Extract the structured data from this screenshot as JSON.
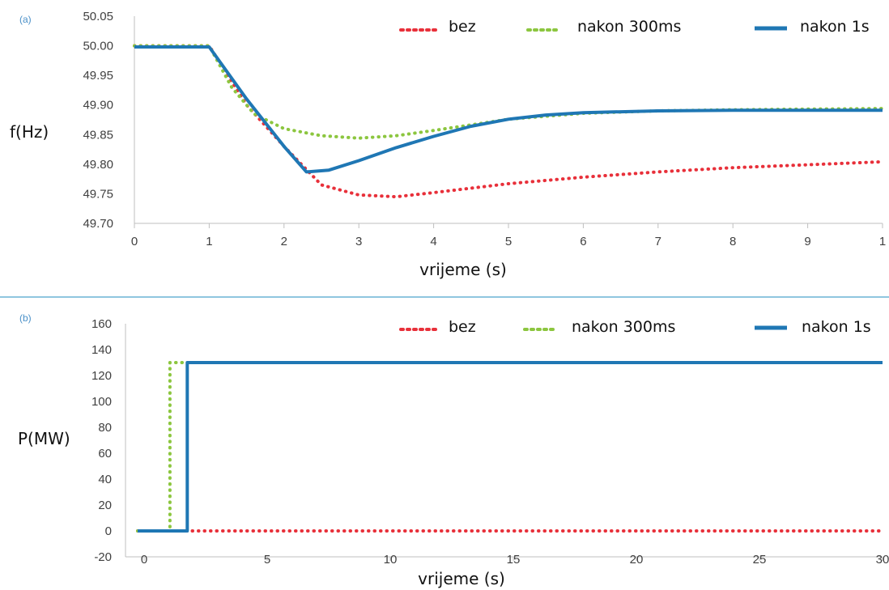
{
  "chart_data": [
    {
      "panel": "(a)",
      "type": "line",
      "xlabel": "vrijeme (s)",
      "ylabel": "f(Hz)",
      "xlim": [
        0,
        10
      ],
      "ylim": [
        49.7,
        50.05
      ],
      "x_ticks": [
        "0",
        "1",
        "2",
        "3",
        "4",
        "5",
        "6",
        "7",
        "8",
        "9",
        "1"
      ],
      "y_ticks": [
        "50.05",
        "50.00",
        "49.95",
        "49.90",
        "49.85",
        "49.80",
        "49.75",
        "49.70"
      ],
      "legend_position": "top",
      "series": [
        {
          "name": "bez",
          "color": "#e8303a",
          "style": "dotted",
          "points": [
            [
              0,
              50.0
            ],
            [
              1,
              50.0
            ],
            [
              1.5,
              49.9
            ],
            [
              2.0,
              49.83
            ],
            [
              2.5,
              49.765
            ],
            [
              3.0,
              49.748
            ],
            [
              3.5,
              49.745
            ],
            [
              4.0,
              49.752
            ],
            [
              5.0,
              49.767
            ],
            [
              6.0,
              49.778
            ],
            [
              7.0,
              49.787
            ],
            [
              8.0,
              49.794
            ],
            [
              9.0,
              49.799
            ],
            [
              10.0,
              49.804
            ]
          ]
        },
        {
          "name": "nakon 300ms",
          "color": "#8cc63f",
          "style": "dotted",
          "points": [
            [
              0,
              50.0
            ],
            [
              1,
              50.0
            ],
            [
              1.3,
              49.93
            ],
            [
              1.6,
              49.885
            ],
            [
              2.0,
              49.86
            ],
            [
              2.5,
              49.848
            ],
            [
              3.0,
              49.844
            ],
            [
              3.5,
              49.848
            ],
            [
              4.0,
              49.857
            ],
            [
              5.0,
              49.876
            ],
            [
              6.0,
              49.886
            ],
            [
              7.0,
              49.89
            ],
            [
              8.0,
              49.892
            ],
            [
              9.0,
              49.893
            ],
            [
              10.0,
              49.894
            ]
          ]
        },
        {
          "name": "nakon 1s",
          "color": "#1f77b4",
          "style": "solid",
          "points": [
            [
              0,
              49.998
            ],
            [
              1,
              49.998
            ],
            [
              1.5,
              49.91
            ],
            [
              2.0,
              49.83
            ],
            [
              2.3,
              49.787
            ],
            [
              2.6,
              49.79
            ],
            [
              3.0,
              49.806
            ],
            [
              3.5,
              49.828
            ],
            [
              4.0,
              49.847
            ],
            [
              4.5,
              49.864
            ],
            [
              5.0,
              49.876
            ],
            [
              5.5,
              49.883
            ],
            [
              6.0,
              49.887
            ],
            [
              7.0,
              49.89
            ],
            [
              8.0,
              49.891
            ],
            [
              9.0,
              49.891
            ],
            [
              10.0,
              49.891
            ]
          ]
        }
      ]
    },
    {
      "panel": "(b)",
      "type": "line",
      "xlabel": "vrijeme (s)",
      "ylabel": "P(MW)",
      "xlim": [
        0,
        30
      ],
      "ylim": [
        -20,
        160
      ],
      "x_ticks": [
        "0",
        "5",
        "10",
        "15",
        "20",
        "25",
        "30"
      ],
      "y_ticks": [
        "160",
        "140",
        "120",
        "100",
        "80",
        "60",
        "40",
        "20",
        "0",
        "-20"
      ],
      "legend_position": "top",
      "series": [
        {
          "name": "bez",
          "color": "#e8303a",
          "style": "dotted",
          "points": [
            [
              0,
              0
            ],
            [
              30,
              0
            ]
          ]
        },
        {
          "name": "nakon 300ms",
          "color": "#8cc63f",
          "style": "dotted",
          "points": [
            [
              0,
              0
            ],
            [
              1.3,
              0
            ],
            [
              1.3,
              130
            ],
            [
              2.0,
              130
            ]
          ]
        },
        {
          "name": "nakon 1s",
          "color": "#1f77b4",
          "style": "solid",
          "points": [
            [
              0,
              0
            ],
            [
              2.0,
              0
            ],
            [
              2.0,
              130
            ],
            [
              30,
              130
            ]
          ]
        }
      ]
    }
  ]
}
